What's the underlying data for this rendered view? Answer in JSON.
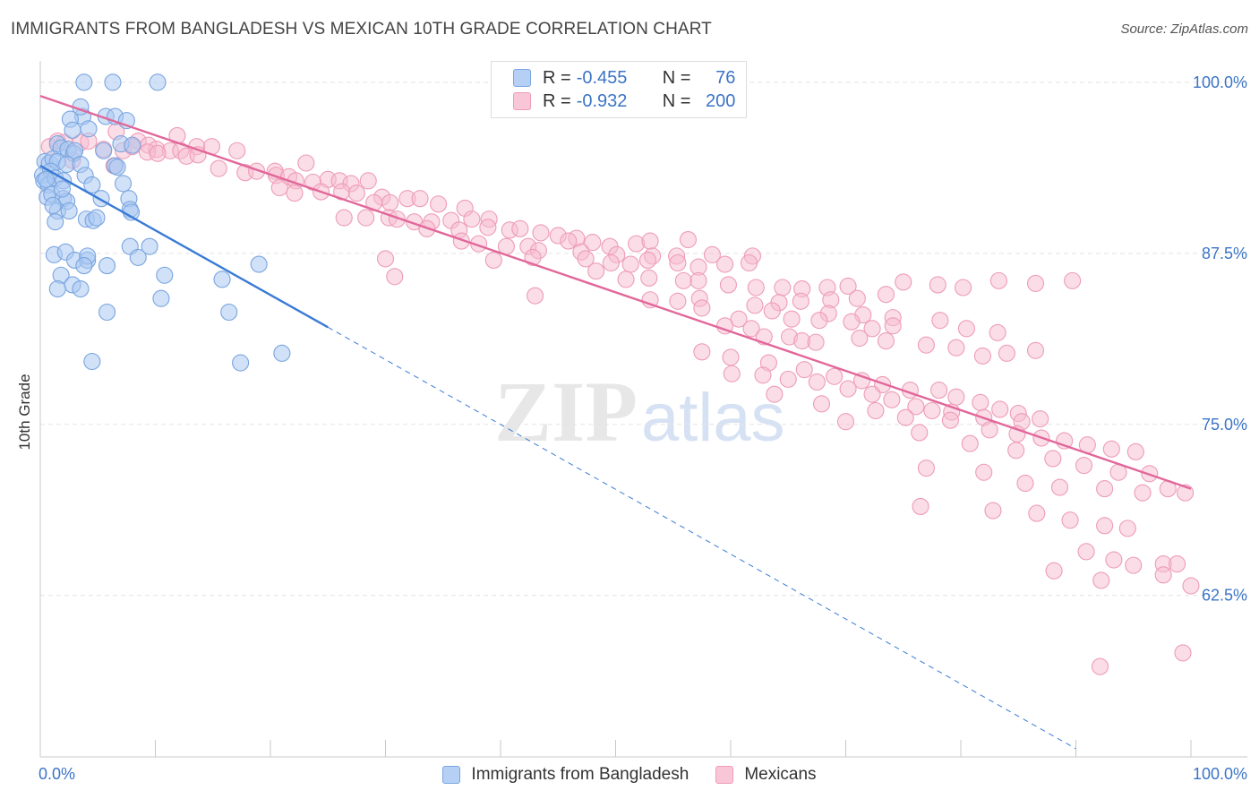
{
  "header": {
    "title": "IMMIGRANTS FROM BANGLADESH VS MEXICAN 10TH GRADE CORRELATION CHART",
    "source": "Source: ZipAtlas.com"
  },
  "watermark": {
    "zip": "ZIP",
    "atlas": "atlas"
  },
  "colors": {
    "blue_fill": "#a9c8f2",
    "blue_stroke": "#7aa5df",
    "blue_line": "#3a7bd5",
    "pink_fill": "#f6bccf",
    "pink_stroke": "#ee9cb7",
    "pink_line": "#e2679a",
    "tick_label": "#3b74c7",
    "grid": "#e3e3e3"
  },
  "legend": {
    "rows": [
      {
        "r_label": "R =",
        "r_value": "-0.455",
        "n_label": "N =",
        "n_value": "76",
        "color": "blue"
      },
      {
        "r_label": "R =",
        "r_value": "-0.932",
        "n_label": "N =",
        "n_value": "200",
        "color": "pink"
      }
    ]
  },
  "chart_data": {
    "type": "scatter",
    "title": "IMMIGRANTS FROM BANGLADESH VS MEXICAN 10TH GRADE CORRELATION CHART",
    "xlabel": "",
    "ylabel": "10th Grade",
    "xlim": [
      0,
      100
    ],
    "ylim": [
      50.7,
      101.3
    ],
    "x_tick_labels": [
      "0.0%",
      "100.0%"
    ],
    "y_ticks": [
      62.5,
      75.0,
      87.5,
      100.0
    ],
    "y_tick_labels": [
      "62.5%",
      "75.0%",
      "87.5%",
      "100.0%"
    ],
    "grid": true,
    "legend_placement": "bottom-center",
    "series": [
      {
        "name": "Immigrants from Bangladesh",
        "color": "blue",
        "trend": {
          "x0": 0,
          "y0": 93.9,
          "x1": 25,
          "y1": 82.1,
          "x_dashed_end": 90,
          "y_dashed_end": 51.3
        },
        "points": [
          [
            3.8,
            100
          ],
          [
            6.3,
            100
          ],
          [
            10.2,
            100
          ],
          [
            3.7,
            97.5
          ],
          [
            5.7,
            97.5
          ],
          [
            6.5,
            97.5
          ],
          [
            7.5,
            97.2
          ],
          [
            2.6,
            97.3
          ],
          [
            2.8,
            96.5
          ],
          [
            1.5,
            95.5
          ],
          [
            1.8,
            95.2
          ],
          [
            2.4,
            95.1
          ],
          [
            2.9,
            94.8
          ],
          [
            3.0,
            95.0
          ],
          [
            5.5,
            95.0
          ],
          [
            7.0,
            95.5
          ],
          [
            8.0,
            95.4
          ],
          [
            0.4,
            94.2
          ],
          [
            0.8,
            94.1
          ],
          [
            1.1,
            94.4
          ],
          [
            1.5,
            94.2
          ],
          [
            2.3,
            94.0
          ],
          [
            3.5,
            94.0
          ],
          [
            6.5,
            93.9
          ],
          [
            6.7,
            93.8
          ],
          [
            0.2,
            93.2
          ],
          [
            0.9,
            93.5
          ],
          [
            0.3,
            92.8
          ],
          [
            0.7,
            92.5
          ],
          [
            1.3,
            93.0
          ],
          [
            2.0,
            92.8
          ],
          [
            3.9,
            93.2
          ],
          [
            4.5,
            92.5
          ],
          [
            7.2,
            92.6
          ],
          [
            0.6,
            91.6
          ],
          [
            1.0,
            91.8
          ],
          [
            2.0,
            91.5
          ],
          [
            2.3,
            91.3
          ],
          [
            5.3,
            91.5
          ],
          [
            7.7,
            91.5
          ],
          [
            7.8,
            90.7
          ],
          [
            1.5,
            90.6
          ],
          [
            2.5,
            90.6
          ],
          [
            7.9,
            90.5
          ],
          [
            1.3,
            89.8
          ],
          [
            4.0,
            90.0
          ],
          [
            4.6,
            89.9
          ],
          [
            4.9,
            90.1
          ],
          [
            7.8,
            88.0
          ],
          [
            9.5,
            88.0
          ],
          [
            1.2,
            87.4
          ],
          [
            2.2,
            87.6
          ],
          [
            3.0,
            87.0
          ],
          [
            4.1,
            87.0
          ],
          [
            4.1,
            87.3
          ],
          [
            8.5,
            87.2
          ],
          [
            3.8,
            86.6
          ],
          [
            5.8,
            86.6
          ],
          [
            19,
            86.7
          ],
          [
            1.8,
            85.9
          ],
          [
            10.8,
            85.9
          ],
          [
            2.8,
            85.2
          ],
          [
            1.5,
            84.9
          ],
          [
            3.5,
            84.9
          ],
          [
            15.8,
            85.6
          ],
          [
            10.5,
            84.2
          ],
          [
            5.8,
            83.2
          ],
          [
            16.4,
            83.2
          ],
          [
            21,
            80.2
          ],
          [
            4.5,
            79.6
          ],
          [
            17.4,
            79.5
          ],
          [
            3.5,
            98.2
          ],
          [
            4.2,
            96.6
          ],
          [
            0.5,
            92.9
          ],
          [
            1.9,
            92.2
          ],
          [
            1.1,
            91.0
          ]
        ]
      },
      {
        "name": "Mexicans",
        "color": "pink",
        "trend": {
          "x0": 0,
          "y0": 99.0,
          "x1": 100,
          "y1": 70.3
        },
        "points": [
          [
            0.8,
            95.3
          ],
          [
            1.5,
            95.7
          ],
          [
            2.1,
            95.6
          ],
          [
            3.5,
            95.6
          ],
          [
            4.2,
            95.7
          ],
          [
            6.6,
            96.4
          ],
          [
            7.2,
            95.0
          ],
          [
            8.5,
            95.7
          ],
          [
            11.9,
            96.1
          ],
          [
            5.5,
            95.1
          ],
          [
            8.0,
            95.3
          ],
          [
            9.4,
            95.4
          ],
          [
            10.1,
            95.1
          ],
          [
            11.3,
            95.0
          ],
          [
            12.2,
            95.0
          ],
          [
            13.6,
            95.3
          ],
          [
            14.9,
            95.3
          ],
          [
            9.3,
            94.9
          ],
          [
            10.2,
            94.8
          ],
          [
            12.7,
            94.6
          ],
          [
            13.7,
            94.7
          ],
          [
            17.1,
            95.0
          ],
          [
            23.1,
            94.1
          ],
          [
            2.8,
            94.3
          ],
          [
            6.4,
            93.9
          ],
          [
            15.5,
            93.7
          ],
          [
            17.8,
            93.4
          ],
          [
            18.8,
            93.5
          ],
          [
            20.4,
            93.5
          ],
          [
            20.5,
            93.2
          ],
          [
            21.6,
            93.1
          ],
          [
            22.2,
            92.8
          ],
          [
            23.7,
            92.7
          ],
          [
            25.0,
            92.9
          ],
          [
            26.0,
            92.8
          ],
          [
            27.0,
            92.6
          ],
          [
            28.5,
            92.8
          ],
          [
            20.8,
            92.3
          ],
          [
            22.1,
            91.9
          ],
          [
            24.4,
            92.0
          ],
          [
            26.2,
            92.0
          ],
          [
            27.5,
            91.9
          ],
          [
            29.7,
            91.6
          ],
          [
            31.9,
            91.5
          ],
          [
            33.0,
            91.5
          ],
          [
            29.0,
            91.2
          ],
          [
            30.4,
            91.2
          ],
          [
            34.6,
            91.1
          ],
          [
            36.9,
            90.8
          ],
          [
            26.4,
            90.1
          ],
          [
            28.3,
            90.1
          ],
          [
            30.3,
            90.1
          ],
          [
            31.0,
            90.0
          ],
          [
            32.5,
            89.8
          ],
          [
            34.0,
            89.8
          ],
          [
            35.7,
            89.9
          ],
          [
            37.5,
            90.0
          ],
          [
            39.0,
            90.0
          ],
          [
            33.6,
            89.3
          ],
          [
            36.4,
            89.2
          ],
          [
            38.9,
            89.4
          ],
          [
            40.8,
            89.2
          ],
          [
            41.7,
            89.3
          ],
          [
            43.5,
            89.0
          ],
          [
            45.0,
            88.8
          ],
          [
            46.6,
            88.6
          ],
          [
            36.6,
            88.4
          ],
          [
            38.1,
            88.2
          ],
          [
            40.5,
            88.0
          ],
          [
            42.4,
            88.0
          ],
          [
            45.9,
            88.4
          ],
          [
            48.0,
            88.3
          ],
          [
            49.5,
            88.0
          ],
          [
            51.8,
            88.2
          ],
          [
            53.0,
            88.4
          ],
          [
            56.3,
            88.5
          ],
          [
            43.3,
            87.7
          ],
          [
            47.0,
            87.6
          ],
          [
            50.1,
            87.4
          ],
          [
            53.2,
            87.3
          ],
          [
            55.3,
            87.3
          ],
          [
            58.4,
            87.4
          ],
          [
            61.9,
            87.3
          ],
          [
            30.0,
            87.1
          ],
          [
            39.4,
            87.0
          ],
          [
            42.8,
            87.2
          ],
          [
            47.4,
            87.1
          ],
          [
            49.6,
            86.8
          ],
          [
            51.3,
            86.7
          ],
          [
            52.8,
            87.0
          ],
          [
            55.4,
            86.8
          ],
          [
            57.2,
            86.5
          ],
          [
            59.5,
            86.7
          ],
          [
            61.6,
            86.8
          ],
          [
            30.8,
            85.8
          ],
          [
            48.3,
            86.2
          ],
          [
            50.9,
            85.6
          ],
          [
            52.9,
            85.7
          ],
          [
            55.9,
            85.5
          ],
          [
            57.2,
            85.5
          ],
          [
            59.8,
            85.2
          ],
          [
            62.2,
            85.0
          ],
          [
            64.5,
            85.0
          ],
          [
            66.2,
            84.9
          ],
          [
            68.4,
            85.0
          ],
          [
            70.2,
            85.1
          ],
          [
            43.0,
            84.4
          ],
          [
            53.0,
            84.1
          ],
          [
            55.4,
            84.0
          ],
          [
            57.3,
            84.2
          ],
          [
            62.1,
            83.7
          ],
          [
            64.2,
            83.9
          ],
          [
            66.1,
            84.0
          ],
          [
            68.7,
            84.1
          ],
          [
            71.0,
            84.2
          ],
          [
            73.5,
            84.5
          ],
          [
            75.0,
            85.4
          ],
          [
            78.0,
            85.2
          ],
          [
            80.2,
            85.0
          ],
          [
            83.3,
            85.5
          ],
          [
            86.5,
            85.3
          ],
          [
            89.7,
            85.5
          ],
          [
            57.5,
            83.5
          ],
          [
            63.6,
            83.3
          ],
          [
            68.5,
            83.1
          ],
          [
            71.5,
            83.0
          ],
          [
            74.1,
            82.8
          ],
          [
            60.7,
            82.7
          ],
          [
            65.3,
            82.7
          ],
          [
            67.7,
            82.6
          ],
          [
            70.5,
            82.5
          ],
          [
            72.3,
            82.0
          ],
          [
            74.1,
            82.2
          ],
          [
            78.2,
            82.6
          ],
          [
            80.5,
            82.0
          ],
          [
            83.2,
            81.7
          ],
          [
            59.5,
            82.2
          ],
          [
            61.8,
            82.0
          ],
          [
            62.9,
            81.4
          ],
          [
            65.1,
            81.4
          ],
          [
            66.2,
            81.1
          ],
          [
            67.4,
            81.0
          ],
          [
            71.2,
            81.3
          ],
          [
            73.5,
            81.1
          ],
          [
            77.0,
            80.8
          ],
          [
            79.6,
            80.6
          ],
          [
            81.9,
            80.0
          ],
          [
            84.0,
            80.2
          ],
          [
            86.5,
            80.4
          ],
          [
            57.5,
            80.3
          ],
          [
            60.0,
            79.9
          ],
          [
            63.3,
            79.5
          ],
          [
            66.4,
            79.0
          ],
          [
            69.0,
            78.5
          ],
          [
            71.4,
            78.2
          ],
          [
            73.2,
            77.9
          ],
          [
            75.6,
            77.5
          ],
          [
            78.1,
            77.5
          ],
          [
            79.6,
            77.0
          ],
          [
            81.7,
            76.6
          ],
          [
            83.4,
            76.1
          ],
          [
            85.0,
            75.8
          ],
          [
            86.9,
            75.4
          ],
          [
            60.1,
            78.7
          ],
          [
            62.8,
            78.6
          ],
          [
            65.0,
            78.3
          ],
          [
            67.5,
            78.1
          ],
          [
            70.2,
            77.6
          ],
          [
            72.3,
            77.2
          ],
          [
            74.0,
            76.8
          ],
          [
            76.1,
            76.3
          ],
          [
            77.5,
            76.0
          ],
          [
            79.2,
            75.9
          ],
          [
            82.0,
            75.5
          ],
          [
            85.3,
            75.2
          ],
          [
            63.8,
            77.2
          ],
          [
            67.9,
            76.5
          ],
          [
            72.6,
            76.0
          ],
          [
            75.2,
            75.5
          ],
          [
            79.1,
            75.3
          ],
          [
            82.5,
            74.6
          ],
          [
            84.9,
            74.3
          ],
          [
            87.0,
            74.0
          ],
          [
            89.0,
            73.8
          ],
          [
            91.0,
            73.5
          ],
          [
            93.1,
            73.2
          ],
          [
            95.2,
            73.0
          ],
          [
            70.0,
            75.2
          ],
          [
            76.4,
            74.4
          ],
          [
            80.8,
            73.6
          ],
          [
            84.8,
            73.1
          ],
          [
            88.0,
            72.5
          ],
          [
            90.7,
            72.0
          ],
          [
            93.7,
            71.5
          ],
          [
            96.4,
            71.4
          ],
          [
            77.0,
            71.8
          ],
          [
            82.0,
            71.5
          ],
          [
            85.6,
            70.7
          ],
          [
            88.6,
            70.4
          ],
          [
            92.5,
            70.3
          ],
          [
            95.8,
            70.0
          ],
          [
            98.0,
            70.3
          ],
          [
            99.5,
            70.0
          ],
          [
            76.5,
            69.0
          ],
          [
            82.8,
            68.7
          ],
          [
            86.6,
            68.5
          ],
          [
            89.5,
            68.0
          ],
          [
            92.5,
            67.6
          ],
          [
            94.5,
            67.4
          ],
          [
            90.9,
            65.7
          ],
          [
            93.3,
            65.1
          ],
          [
            95.0,
            64.7
          ],
          [
            97.6,
            64.8
          ],
          [
            98.8,
            64.8
          ],
          [
            100.0,
            63.2
          ],
          [
            88.1,
            64.3
          ],
          [
            92.2,
            63.6
          ],
          [
            97.6,
            64.0
          ],
          [
            99.3,
            58.3
          ],
          [
            92.1,
            57.3
          ]
        ]
      }
    ]
  }
}
